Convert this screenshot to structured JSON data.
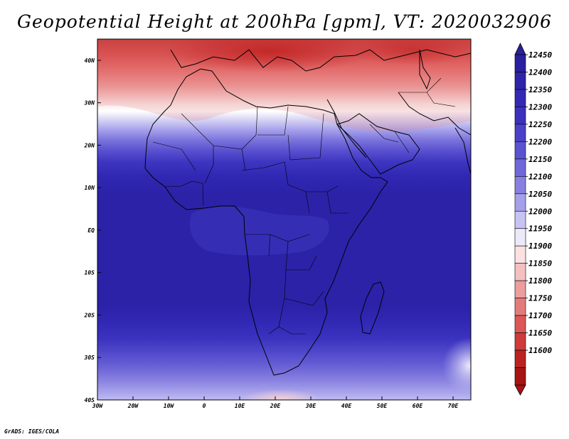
{
  "title": "Geopotential Height at 200hPa [gpm], VT: 2020032906",
  "credit": "GrADS: IGES/COLA",
  "map": {
    "lon_range": [
      -30,
      75
    ],
    "lat_range": [
      -40,
      45
    ],
    "lat_ticks": [
      {
        "lat": 40,
        "label": "40N"
      },
      {
        "lat": 30,
        "label": "30N"
      },
      {
        "lat": 20,
        "label": "20N"
      },
      {
        "lat": 10,
        "label": "10N"
      },
      {
        "lat": 0,
        "label": "EQ"
      },
      {
        "lat": -10,
        "label": "10S"
      },
      {
        "lat": -20,
        "label": "20S"
      },
      {
        "lat": -30,
        "label": "30S"
      },
      {
        "lat": -40,
        "label": "40S"
      }
    ],
    "lon_ticks": [
      {
        "lon": -30,
        "label": "30W"
      },
      {
        "lon": -20,
        "label": "20W"
      },
      {
        "lon": -10,
        "label": "10W"
      },
      {
        "lon": 0,
        "label": "0"
      },
      {
        "lon": 10,
        "label": "10E"
      },
      {
        "lon": 20,
        "label": "20E"
      },
      {
        "lon": 30,
        "label": "30E"
      },
      {
        "lon": 40,
        "label": "40E"
      },
      {
        "lon": 50,
        "label": "50E"
      },
      {
        "lon": 60,
        "label": "60E"
      },
      {
        "lon": 70,
        "label": "70E"
      }
    ]
  },
  "colorbar": {
    "levels": [
      "12450",
      "12400",
      "12350",
      "12300",
      "12250",
      "12200",
      "12150",
      "12100",
      "12050",
      "12000",
      "11950",
      "11900",
      "11850",
      "11800",
      "11750",
      "11700",
      "11650",
      "11600"
    ],
    "colors": [
      "#2a1f9e",
      "#2e24a9",
      "#3429b5",
      "#3b31bf",
      "#4a41c8",
      "#5a53d0",
      "#7068d8",
      "#8880e0",
      "#a5a0ea",
      "#c7c4f3",
      "#ece9fb",
      "#fbe1e1",
      "#f4c0c0",
      "#ec9d9d",
      "#e47b7b",
      "#dc5858",
      "#cf3a3a",
      "#bb2323",
      "#a61414"
    ]
  }
}
